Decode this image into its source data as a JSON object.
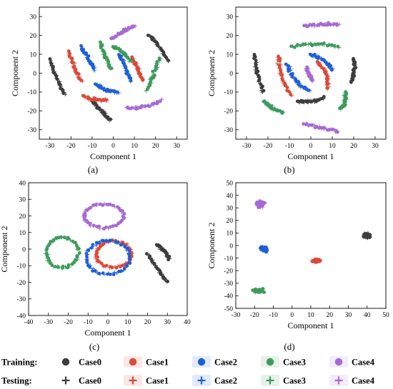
{
  "colors": {
    "Case0": "#3d3d3d",
    "Case1": "#d94a3a",
    "Case2": "#1f5fd6",
    "Case3": "#3e9a5c",
    "Case4": "#a56ad4"
  },
  "legend": {
    "rows": [
      {
        "label": "Training:",
        "marker": "circle"
      },
      {
        "label": "Testing:",
        "marker": "plus"
      }
    ],
    "entries": [
      "Case0",
      "Case1",
      "Case2",
      "Case3",
      "Case4"
    ]
  },
  "chart_data": [
    {
      "type": "scatter",
      "panel_label": "(a)",
      "xlabel": "Component 1",
      "ylabel": "Component 2",
      "xlim": [
        -35,
        35
      ],
      "ylim": [
        -35,
        35
      ],
      "xticks": [
        -30,
        -20,
        -10,
        0,
        10,
        20,
        30
      ],
      "yticks": [
        -30,
        -20,
        -10,
        0,
        10,
        20,
        30
      ],
      "clusters": [
        {
          "case": "Case0",
          "shape": "arc",
          "center": [
            -27,
            0
          ],
          "pts": [
            [
              -30,
              7
            ],
            [
              -27,
              -3
            ],
            [
              -23,
              -11
            ]
          ]
        },
        {
          "case": "Case0",
          "shape": "arc",
          "center": [
            -5,
            -20
          ],
          "pts": [
            [
              -10,
              -15
            ],
            [
              -6,
              -20
            ],
            [
              -1,
              -25
            ]
          ]
        },
        {
          "case": "Case0",
          "shape": "arc",
          "center": [
            22,
            12
          ],
          "pts": [
            [
              17,
              20
            ],
            [
              22,
              15
            ],
            [
              26,
              6
            ]
          ]
        },
        {
          "case": "Case1",
          "shape": "arc",
          "center": [
            -18,
            5
          ],
          "pts": [
            [
              -21,
              11
            ],
            [
              -19,
              3
            ],
            [
              -15,
              -4
            ]
          ]
        },
        {
          "case": "Case1",
          "shape": "arc",
          "center": [
            -8,
            -13
          ],
          "pts": [
            [
              -14,
              -12
            ],
            [
              -9,
              -15
            ],
            [
              -3,
              -14
            ]
          ]
        },
        {
          "case": "Case1",
          "shape": "arc",
          "center": [
            12,
            2
          ],
          "pts": [
            [
              9,
              8
            ],
            [
              12,
              2
            ],
            [
              14,
              -4
            ]
          ]
        },
        {
          "case": "Case2",
          "shape": "arc",
          "center": [
            -12,
            8
          ],
          "pts": [
            [
              -15,
              14
            ],
            [
              -12,
              8
            ],
            [
              -9,
              2
            ]
          ]
        },
        {
          "case": "Case2",
          "shape": "arc",
          "center": [
            -2,
            -7
          ],
          "pts": [
            [
              -8,
              -6
            ],
            [
              -3,
              -10
            ],
            [
              2,
              -10
            ]
          ]
        },
        {
          "case": "Case2",
          "shape": "arc",
          "center": [
            5,
            2
          ],
          "pts": [
            [
              3,
              10
            ],
            [
              6,
              3
            ],
            [
              8,
              -4
            ]
          ]
        },
        {
          "case": "Case3",
          "shape": "arc",
          "center": [
            -3,
            10
          ],
          "pts": [
            [
              -6,
              16
            ],
            [
              -4,
              9
            ],
            [
              -1,
              2
            ]
          ]
        },
        {
          "case": "Case3",
          "shape": "arc",
          "center": [
            18,
            -2
          ],
          "pts": [
            [
              22,
              8
            ],
            [
              19,
              -1
            ],
            [
              16,
              -9
            ]
          ]
        },
        {
          "case": "Case3",
          "shape": "arc",
          "center": [
            5,
            10
          ],
          "pts": [
            [
              0,
              14
            ],
            [
              5,
              12
            ],
            [
              8,
              6
            ]
          ]
        },
        {
          "case": "Case4",
          "shape": "arc",
          "center": [
            5,
            20
          ],
          "pts": [
            [
              -1,
              18
            ],
            [
              4,
              22
            ],
            [
              10,
              25
            ]
          ]
        },
        {
          "case": "Case4",
          "shape": "arc",
          "center": [
            15,
            -17
          ],
          "pts": [
            [
              6,
              -18
            ],
            [
              14,
              -20
            ],
            [
              23,
              -14
            ]
          ]
        }
      ]
    },
    {
      "type": "scatter",
      "panel_label": "(b)",
      "xlabel": "Component 1",
      "ylabel": "Component 2",
      "xlim": [
        -35,
        35
      ],
      "ylim": [
        -35,
        35
      ],
      "xticks": [
        -30,
        -20,
        -10,
        0,
        10,
        20,
        30
      ],
      "yticks": [
        -30,
        -20,
        -10,
        0,
        10,
        20,
        30
      ],
      "clusters": [
        {
          "case": "Case0",
          "shape": "arc",
          "center": [
            -25,
            0
          ],
          "pts": [
            [
              -26,
              10
            ],
            [
              -26,
              0
            ],
            [
              -22,
              -10
            ]
          ]
        },
        {
          "case": "Case0",
          "shape": "arc",
          "center": [
            20,
            0
          ],
          "pts": [
            [
              20,
              8
            ],
            [
              21,
              1
            ],
            [
              19,
              -5
            ]
          ]
        },
        {
          "case": "Case0",
          "shape": "arc",
          "center": [
            0,
            -15
          ],
          "pts": [
            [
              -6,
              -15
            ],
            [
              0,
              -16
            ],
            [
              6,
              -13
            ]
          ]
        },
        {
          "case": "Case1",
          "shape": "arc",
          "center": [
            -12,
            0
          ],
          "pts": [
            [
              -15,
              9
            ],
            [
              -15,
              -3
            ],
            [
              -9,
              -12
            ]
          ]
        },
        {
          "case": "Case1",
          "shape": "arc",
          "center": [
            5,
            -5
          ],
          "pts": [
            [
              3,
              6
            ],
            [
              9,
              0
            ],
            [
              8,
              -8
            ]
          ]
        },
        {
          "case": "Case2",
          "shape": "arc",
          "center": [
            -5,
            0
          ],
          "pts": [
            [
              -11,
              5
            ],
            [
              -8,
              -6
            ],
            [
              -1,
              -9
            ]
          ]
        },
        {
          "case": "Case2",
          "shape": "arc",
          "center": [
            5,
            5
          ],
          "pts": [
            [
              0,
              10
            ],
            [
              6,
              8
            ],
            [
              10,
              2
            ]
          ]
        },
        {
          "case": "Case3",
          "shape": "arc",
          "center": [
            5,
            15
          ],
          "pts": [
            [
              -9,
              14
            ],
            [
              3,
              17
            ],
            [
              13,
              14
            ]
          ]
        },
        {
          "case": "Case3",
          "shape": "arc",
          "center": [
            10,
            -15
          ],
          "pts": [
            [
              16,
              -10
            ],
            [
              17,
              -15
            ],
            [
              14,
              -19
            ]
          ]
        },
        {
          "case": "Case3",
          "shape": "arc",
          "center": [
            -20,
            -18
          ],
          "pts": [
            [
              -22,
              -15
            ],
            [
              -18,
              -19
            ],
            [
              -13,
              -21
            ]
          ]
        },
        {
          "case": "Case4",
          "shape": "arc",
          "center": [
            5,
            25
          ],
          "pts": [
            [
              -3,
              25
            ],
            [
              5,
              26
            ],
            [
              13,
              26
            ]
          ]
        },
        {
          "case": "Case4",
          "shape": "arc",
          "center": [
            5,
            -28
          ],
          "pts": [
            [
              -3,
              -27
            ],
            [
              5,
              -29
            ],
            [
              13,
              -31
            ]
          ]
        },
        {
          "case": "Case4",
          "shape": "arc",
          "center": [
            0,
            0
          ],
          "pts": [
            [
              -2,
              3
            ],
            [
              -1,
              -1
            ],
            [
              1,
              -4
            ]
          ]
        }
      ]
    },
    {
      "type": "scatter",
      "panel_label": "(c)",
      "xlabel": "Component 1",
      "ylabel": "Component 2",
      "xlim": [
        -40,
        40
      ],
      "ylim": [
        -40,
        40
      ],
      "xticks": [
        -40,
        -30,
        -20,
        -10,
        0,
        10,
        20,
        30,
        40
      ],
      "yticks": [
        -40,
        -30,
        -20,
        -10,
        0,
        10,
        20,
        30,
        40
      ],
      "clusters": [
        {
          "case": "Case4",
          "shape": "ring",
          "center": [
            -2,
            20
          ],
          "r": [
            10,
            7
          ]
        },
        {
          "case": "Case3",
          "shape": "ring",
          "center": [
            -23,
            -2
          ],
          "r": [
            8,
            9
          ]
        },
        {
          "case": "Case1",
          "shape": "ring",
          "center": [
            3,
            -3
          ],
          "r": [
            9,
            8
          ]
        },
        {
          "case": "Case2",
          "shape": "ring",
          "center": [
            0,
            -5
          ],
          "r": [
            11,
            10
          ]
        },
        {
          "case": "Case0",
          "shape": "arc",
          "center": [
            25,
            -10
          ],
          "pts": [
            [
              20,
              -3
            ],
            [
              25,
              -12
            ],
            [
              30,
              -20
            ]
          ]
        },
        {
          "case": "Case0",
          "shape": "arc",
          "center": [
            28,
            0
          ],
          "pts": [
            [
              25,
              2
            ],
            [
              29,
              0
            ],
            [
              31,
              -6
            ]
          ]
        }
      ]
    },
    {
      "type": "scatter",
      "panel_label": "(d)",
      "xlabel": "Component 1",
      "ylabel": "Component 2",
      "xlim": [
        -30,
        50
      ],
      "ylim": [
        -50,
        50
      ],
      "xticks": [
        -30,
        -20,
        -10,
        0,
        10,
        20,
        30,
        40,
        50
      ],
      "yticks": [
        -50,
        -40,
        -30,
        -20,
        -10,
        0,
        10,
        20,
        30,
        40,
        50
      ],
      "clusters": [
        {
          "case": "Case4",
          "shape": "blob",
          "center": [
            -17,
            33
          ],
          "r": [
            3,
            3.5
          ]
        },
        {
          "case": "Case2",
          "shape": "blob",
          "center": [
            -15,
            -3
          ],
          "r": [
            2.5,
            3
          ]
        },
        {
          "case": "Case1",
          "shape": "blob",
          "center": [
            13,
            -12
          ],
          "r": [
            3,
            1.8
          ]
        },
        {
          "case": "Case3",
          "shape": "blob",
          "center": [
            -18,
            -36
          ],
          "r": [
            4,
            2
          ]
        },
        {
          "case": "Case0",
          "shape": "blob",
          "center": [
            40,
            8
          ],
          "r": [
            3,
            3
          ]
        }
      ]
    }
  ]
}
